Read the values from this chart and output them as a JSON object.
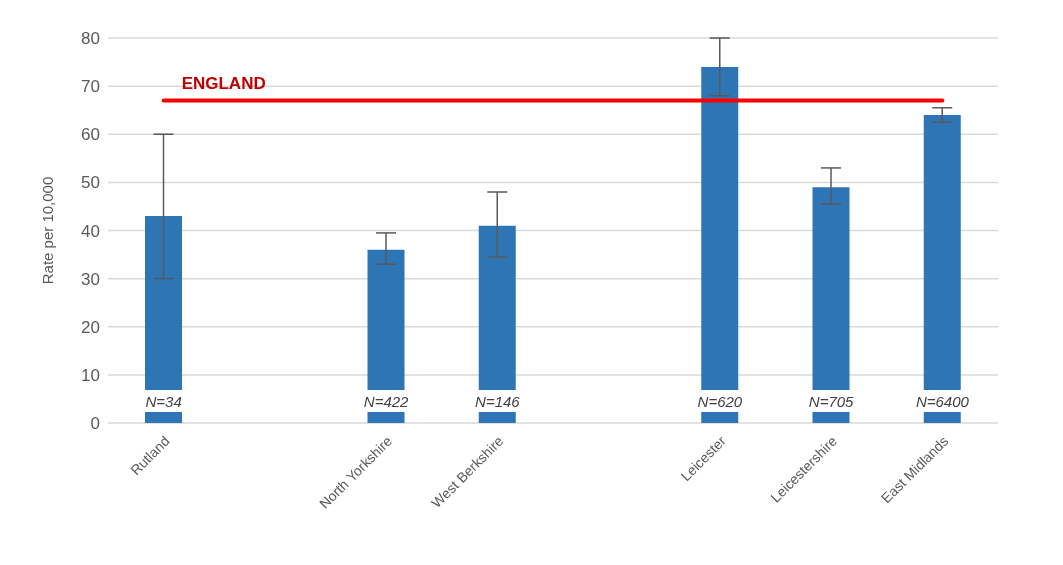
{
  "chart_data": {
    "type": "bar",
    "ylabel": "Rate per 10,000",
    "categories": [
      "Rutland",
      null,
      "North Yorkshire",
      "West Berkshire",
      null,
      "Leicester",
      "Leicestershire",
      "East Midlands"
    ],
    "values": [
      43,
      null,
      36,
      41,
      null,
      74,
      49,
      64
    ],
    "errors": [
      [
        30,
        60
      ],
      null,
      [
        33,
        39.5
      ],
      [
        34.5,
        48
      ],
      null,
      [
        68,
        80
      ],
      [
        45.5,
        53
      ],
      [
        62.5,
        65.5
      ]
    ],
    "color": "#2e75b6",
    "ylim": [
      0,
      80
    ],
    "yticks": [
      0,
      10,
      20,
      30,
      40,
      50,
      60,
      70,
      80
    ],
    "grid": "y",
    "ref_lines": [
      {
        "axis": "y",
        "value": 67,
        "label": "ENGLAND",
        "color": "#ff0000"
      }
    ],
    "annotations": [
      "N=34",
      "N=422",
      "N=146",
      "N=620",
      "N=705",
      "N=6400"
    ]
  }
}
